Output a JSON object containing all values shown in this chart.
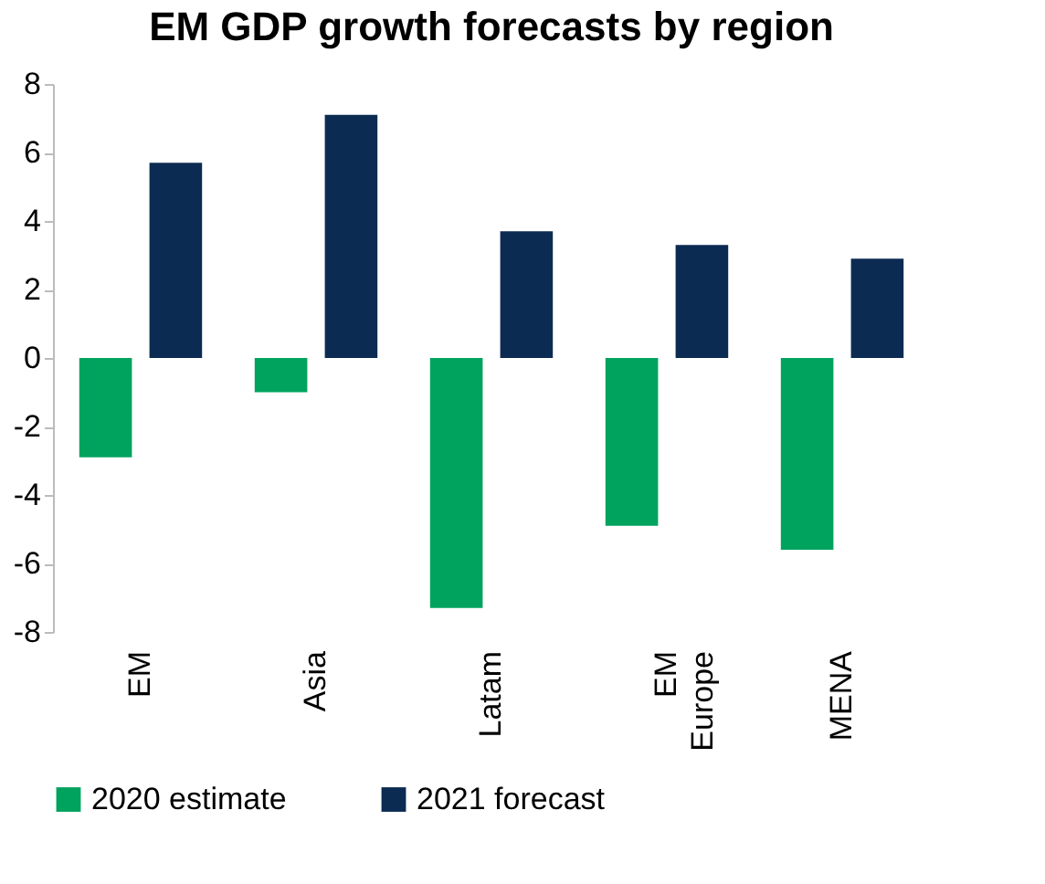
{
  "chart_data": {
    "type": "bar",
    "title": "EM GDP growth forecasts by region",
    "categories": [
      "EM",
      "Asia",
      "Latam",
      "EM Europe",
      "MENA"
    ],
    "series": [
      {
        "name": "2020 estimate",
        "color": "#00a35e",
        "values": [
          -2.9,
          -1.0,
          -7.3,
          -4.9,
          -5.6
        ]
      },
      {
        "name": "2021 forecast",
        "color": "#0c2b52",
        "values": [
          5.7,
          7.1,
          3.7,
          3.3,
          2.9
        ]
      }
    ],
    "ylim": [
      -8,
      8
    ],
    "yticks": [
      -8,
      -6,
      -4,
      -2,
      0,
      2,
      4,
      6,
      8
    ],
    "legend": "bottom"
  }
}
